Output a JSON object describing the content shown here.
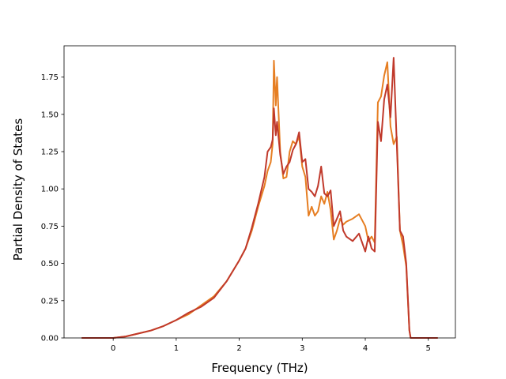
{
  "chart_data": {
    "type": "line",
    "title": "",
    "xlabel": "Frequency (THz)",
    "ylabel": "Partial Density of States",
    "xlim": [
      -0.78,
      5.43
    ],
    "ylim": [
      0.0,
      1.96
    ],
    "xticks": [
      0,
      1,
      2,
      3,
      4,
      5
    ],
    "xtick_labels": [
      "0",
      "1",
      "2",
      "3",
      "4",
      "5"
    ],
    "yticks": [
      0.0,
      0.25,
      0.5,
      0.75,
      1.0,
      1.25,
      1.5,
      1.75
    ],
    "ytick_labels": [
      "0.00",
      "0.25",
      "0.50",
      "0.75",
      "1.00",
      "1.25",
      "1.50",
      "1.75"
    ],
    "grid": false,
    "legend": false,
    "series": [
      {
        "color": "#e67e22",
        "x": [
          -0.5,
          0.0,
          0.2,
          0.4,
          0.6,
          0.8,
          1.0,
          1.2,
          1.4,
          1.6,
          1.8,
          2.0,
          2.1,
          2.2,
          2.3,
          2.4,
          2.45,
          2.5,
          2.53,
          2.55,
          2.58,
          2.6,
          2.65,
          2.7,
          2.75,
          2.8,
          2.85,
          2.9,
          2.95,
          3.0,
          3.05,
          3.1,
          3.15,
          3.2,
          3.25,
          3.3,
          3.35,
          3.4,
          3.45,
          3.5,
          3.55,
          3.6,
          3.65,
          3.7,
          3.8,
          3.9,
          4.0,
          4.05,
          4.1,
          4.15,
          4.2,
          4.25,
          4.3,
          4.35,
          4.4,
          4.45,
          4.5,
          4.55,
          4.6,
          4.65,
          4.7,
          4.72,
          4.8,
          5.0,
          5.15
        ],
        "y": [
          0.0,
          0.0,
          0.01,
          0.03,
          0.05,
          0.08,
          0.12,
          0.16,
          0.22,
          0.28,
          0.38,
          0.52,
          0.6,
          0.72,
          0.88,
          1.02,
          1.12,
          1.18,
          1.3,
          1.86,
          1.56,
          1.75,
          1.25,
          1.07,
          1.08,
          1.25,
          1.32,
          1.3,
          1.35,
          1.15,
          1.08,
          0.82,
          0.88,
          0.82,
          0.85,
          0.95,
          0.9,
          0.98,
          0.86,
          0.66,
          0.72,
          0.8,
          0.76,
          0.78,
          0.8,
          0.83,
          0.75,
          0.65,
          0.68,
          0.64,
          1.58,
          1.62,
          1.76,
          1.85,
          1.42,
          1.3,
          1.35,
          0.72,
          0.62,
          0.48,
          0.05,
          0.0,
          0.0,
          0.0,
          0.0
        ]
      },
      {
        "color": "#c0392b",
        "x": [
          -0.5,
          0.0,
          0.2,
          0.4,
          0.6,
          0.8,
          1.0,
          1.2,
          1.4,
          1.6,
          1.8,
          2.0,
          2.1,
          2.2,
          2.3,
          2.4,
          2.45,
          2.5,
          2.53,
          2.55,
          2.58,
          2.6,
          2.65,
          2.7,
          2.75,
          2.8,
          2.85,
          2.9,
          2.95,
          3.0,
          3.05,
          3.1,
          3.15,
          3.2,
          3.25,
          3.3,
          3.35,
          3.4,
          3.45,
          3.5,
          3.55,
          3.6,
          3.65,
          3.7,
          3.8,
          3.9,
          4.0,
          4.05,
          4.1,
          4.15,
          4.2,
          4.25,
          4.3,
          4.35,
          4.4,
          4.45,
          4.5,
          4.55,
          4.6,
          4.65,
          4.7,
          4.72,
          4.8,
          5.0,
          5.15
        ],
        "y": [
          0.0,
          0.0,
          0.01,
          0.03,
          0.05,
          0.08,
          0.12,
          0.17,
          0.21,
          0.27,
          0.38,
          0.52,
          0.6,
          0.74,
          0.9,
          1.08,
          1.25,
          1.28,
          1.33,
          1.54,
          1.36,
          1.45,
          1.23,
          1.1,
          1.15,
          1.18,
          1.26,
          1.3,
          1.38,
          1.18,
          1.2,
          1.0,
          0.98,
          0.95,
          1.02,
          1.15,
          0.97,
          0.95,
          0.99,
          0.75,
          0.8,
          0.85,
          0.72,
          0.68,
          0.65,
          0.7,
          0.58,
          0.68,
          0.6,
          0.58,
          1.45,
          1.32,
          1.6,
          1.7,
          1.48,
          1.88,
          1.3,
          0.72,
          0.68,
          0.5,
          0.05,
          0.0,
          0.0,
          0.0,
          0.0
        ]
      }
    ]
  }
}
